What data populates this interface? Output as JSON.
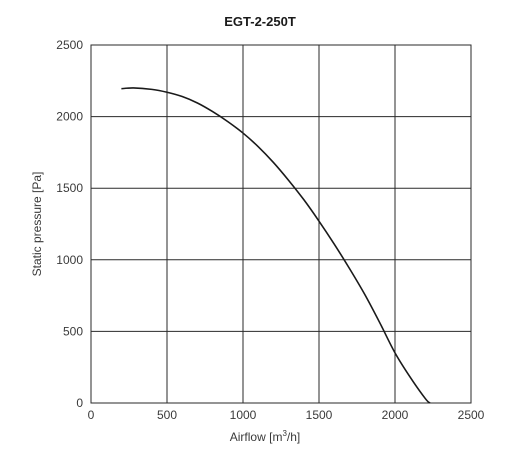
{
  "chart_data": {
    "type": "line",
    "title": "EGT-2-250T",
    "xlabel_prefix": "Airflow [m",
    "xlabel_sup": "3",
    "xlabel_suffix": "/h]",
    "ylabel": "Static pressure [Pa]",
    "xlim": [
      0,
      2500
    ],
    "ylim": [
      0,
      2500
    ],
    "x_ticks": [
      0,
      500,
      1000,
      1500,
      2000,
      2500
    ],
    "y_ticks": [
      0,
      500,
      1000,
      1500,
      2000,
      2500
    ],
    "x_tick_labels": [
      "0",
      "500",
      "1000",
      "1500",
      "2000",
      "2500"
    ],
    "y_tick_labels": [
      "0",
      "500",
      "1000",
      "1500",
      "2000",
      "2500"
    ],
    "grid": true,
    "colors": {
      "line": "#1a1a1a",
      "grid": "#2a2a2a",
      "frame": "#2a2a2a"
    },
    "series": [
      {
        "x": [
          200,
          280,
          400,
          500,
          600,
          700,
          800,
          900,
          1000,
          1100,
          1200,
          1300,
          1400,
          1500,
          1600,
          1700,
          1800,
          1900,
          2000,
          2100,
          2200,
          2230
        ],
        "y": [
          2195,
          2200,
          2190,
          2170,
          2140,
          2095,
          2035,
          1965,
          1885,
          1790,
          1680,
          1555,
          1420,
          1270,
          1110,
          940,
          760,
          560,
          350,
          180,
          30,
          0
        ]
      }
    ]
  }
}
